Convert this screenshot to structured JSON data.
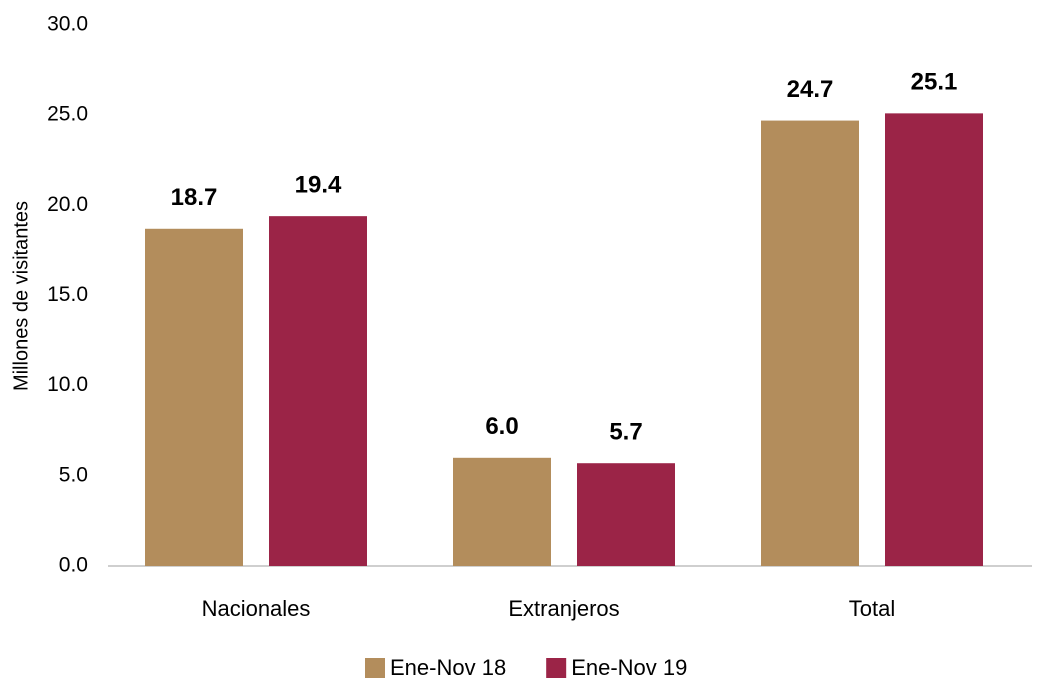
{
  "chart_data": {
    "type": "bar",
    "y_label": "Millones de visitantes",
    "categories": [
      "Nacionales",
      "Extranjeros",
      "Total"
    ],
    "series": [
      {
        "name": "Ene-Nov 18",
        "color": "#b38d5c",
        "values": [
          18.7,
          6.0,
          24.7
        ],
        "value_labels": [
          "18.7",
          "6.0",
          "24.7"
        ]
      },
      {
        "name": "Ene-Nov 19",
        "color": "#9b2447",
        "values": [
          19.4,
          5.7,
          25.1
        ],
        "value_labels": [
          "19.4",
          "5.7",
          "25.1"
        ]
      }
    ],
    "ylim": [
      0,
      30
    ],
    "yticks": [
      {
        "value": 0,
        "label": "0.0"
      },
      {
        "value": 5,
        "label": "5.0"
      },
      {
        "value": 10,
        "label": "10.0"
      },
      {
        "value": 15,
        "label": "15.0"
      },
      {
        "value": 20,
        "label": "20.0"
      },
      {
        "value": 25,
        "label": "25.0"
      },
      {
        "value": 30,
        "label": "30.0"
      }
    ],
    "grid": false,
    "legend": "bottom"
  }
}
